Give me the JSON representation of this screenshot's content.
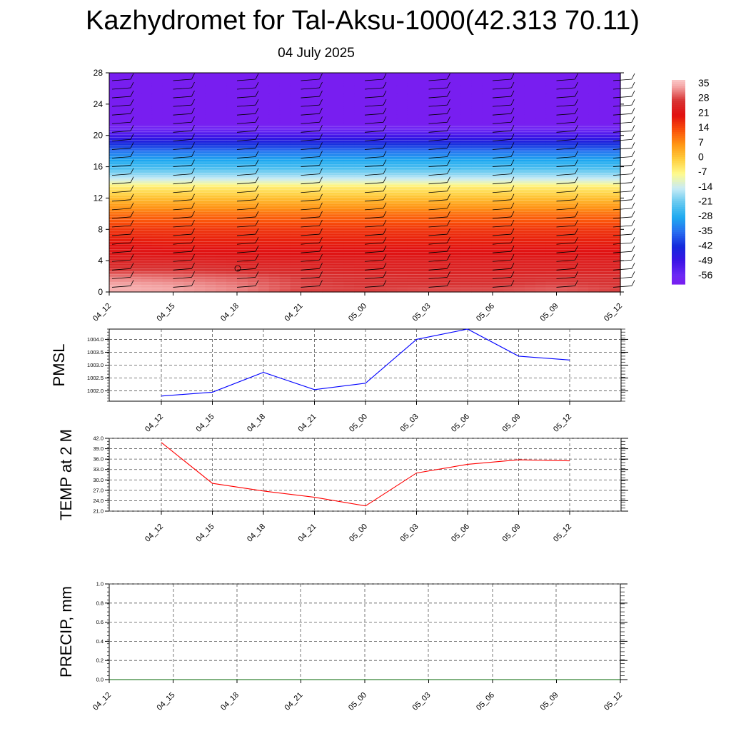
{
  "page": {
    "title": "Kazhydromet for Tal-Aksu-1000(42.313 70.11)",
    "subtitle": "04 July 2025"
  },
  "chart_data": [
    {
      "type": "heatmap",
      "ylim": [
        0,
        28
      ],
      "yticks": [
        0,
        4,
        8,
        12,
        16,
        20,
        24,
        28
      ],
      "x": [
        "04_12",
        "04_15",
        "04_18",
        "04_21",
        "05_00",
        "05_03",
        "05_06",
        "05_09",
        "05_12"
      ],
      "colorbar": {
        "labels": [
          "35",
          "28",
          "21",
          "14",
          "7",
          "0",
          "-7",
          "-14",
          "-21",
          "-28",
          "-35",
          "-42",
          "-49",
          "-56"
        ],
        "range": [
          -60,
          38
        ]
      },
      "levels": [
        0,
        1,
        2,
        3,
        4,
        5,
        6,
        8,
        10,
        12,
        13.5,
        14.5,
        16,
        18,
        19.5,
        20.5,
        21.5,
        24,
        28
      ],
      "values_by_level": [
        [
          36,
          35,
          33,
          29,
          29,
          30,
          30,
          31,
          29
        ],
        [
          35,
          34,
          32,
          29,
          28,
          28,
          28,
          29,
          28
        ],
        [
          32,
          31,
          30,
          28,
          27,
          26,
          26,
          27,
          27
        ],
        [
          28,
          28,
          27,
          26,
          25,
          25,
          25,
          25,
          25
        ],
        [
          25,
          25,
          24,
          24,
          24,
          24,
          24,
          24,
          24
        ],
        [
          23,
          22,
          22,
          22,
          22,
          22,
          22,
          22,
          22
        ],
        [
          21,
          20,
          20,
          20,
          20,
          20,
          20,
          20,
          20
        ],
        [
          17,
          17,
          17,
          17,
          17,
          17,
          17,
          17,
          17
        ],
        [
          11,
          11,
          11,
          11,
          11,
          11,
          11,
          11,
          11
        ],
        [
          2,
          2,
          2,
          2,
          2,
          2,
          2,
          2,
          2
        ],
        [
          -5,
          -5,
          -5,
          -5,
          -5,
          -5,
          -5,
          -5,
          -5
        ],
        [
          -14,
          -14,
          -14,
          -14,
          -14,
          -14,
          -14,
          -14,
          -14
        ],
        [
          -24,
          -24,
          -24,
          -24,
          -24,
          -24,
          -24,
          -24,
          -24
        ],
        [
          -34,
          -34,
          -34,
          -34,
          -34,
          -34,
          -34,
          -34,
          -34
        ],
        [
          -46,
          -46,
          -46,
          -46,
          -46,
          -46,
          -46,
          -46,
          -46
        ],
        [
          -54,
          -54,
          -54,
          -54,
          -54,
          -54,
          -54,
          -54,
          -54
        ],
        [
          -60,
          -60,
          -60,
          -60,
          -60,
          -60,
          -60,
          -60,
          -60
        ],
        [
          -60,
          -60,
          -60,
          -60,
          -60,
          -60,
          -60,
          -60,
          -60
        ],
        [
          -60,
          -60,
          -60,
          -60,
          -60,
          -60,
          -60,
          -60,
          -60
        ]
      ]
    },
    {
      "type": "line",
      "ylabel": "PMSL",
      "x": [
        "04_12",
        "04_15",
        "04_18",
        "04_21",
        "05_00",
        "05_03",
        "05_06",
        "05_09",
        "05_12"
      ],
      "ylim": [
        1001.6,
        1004.4
      ],
      "yticks": [
        "1002.0",
        "1002.5",
        "1003.0",
        "1003.5",
        "1004.0"
      ],
      "grid": true,
      "color": "#0000ff",
      "values": [
        1001.8,
        1001.95,
        1002.72,
        1002.05,
        1002.3,
        1004.0,
        1004.4,
        1003.35,
        1003.2
      ]
    },
    {
      "type": "line",
      "ylabel": "TEMP at 2 M",
      "x": [
        "04_12",
        "04_15",
        "04_18",
        "04_21",
        "05_00",
        "05_03",
        "05_06",
        "05_09",
        "05_12"
      ],
      "ylim": [
        21.0,
        42.0
      ],
      "yticks": [
        "21.0",
        "24.0",
        "27.0",
        "30.0",
        "33.0",
        "36.0",
        "39.0",
        "42.0"
      ],
      "grid": true,
      "color": "#ff0000",
      "values": [
        40.8,
        29.0,
        26.8,
        25.0,
        22.5,
        32.0,
        34.5,
        35.8,
        35.5
      ]
    },
    {
      "type": "line",
      "ylabel": "PRECIP, mm",
      "x": [
        "04_12",
        "04_15",
        "04_18",
        "04_21",
        "05_00",
        "05_03",
        "05_06",
        "05_09",
        "05_12"
      ],
      "ylim": [
        0.0,
        1.0
      ],
      "yticks": [
        "0.0",
        "0.2",
        "0.4",
        "0.6",
        "0.8",
        "1.0"
      ],
      "grid": true,
      "color": "#006400",
      "values": [
        0,
        0,
        0,
        0,
        0,
        0,
        0,
        0,
        0
      ]
    }
  ]
}
